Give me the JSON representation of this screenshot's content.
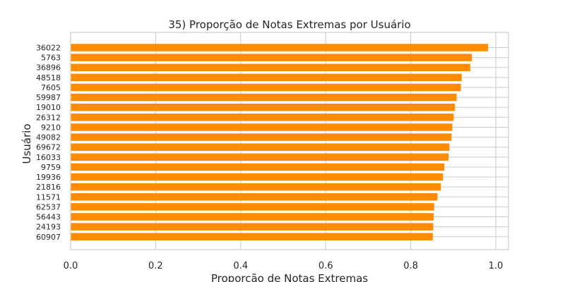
{
  "chart_data": {
    "type": "bar",
    "orientation": "horizontal",
    "title": "35) Proporção de Notas Extremas por Usuário",
    "xlabel": "Proporção de Notas Extremas",
    "ylabel": "Usuário",
    "xlim": [
      0.0,
      1.03
    ],
    "xticks": [
      "0.0",
      "0.2",
      "0.4",
      "0.6",
      "0.8",
      "1.0"
    ],
    "grid": true,
    "bar_color": "#ff8c00",
    "categories": [
      "36022",
      "5763",
      "36896",
      "48518",
      "7605",
      "59987",
      "19010",
      "26312",
      "9210",
      "49082",
      "69672",
      "16033",
      "9759",
      "19936",
      "21816",
      "11571",
      "62537",
      "56443",
      "24193",
      "60907"
    ],
    "values": [
      0.982,
      0.944,
      0.94,
      0.92,
      0.918,
      0.908,
      0.904,
      0.901,
      0.898,
      0.896,
      0.891,
      0.889,
      0.879,
      0.876,
      0.871,
      0.863,
      0.855,
      0.854,
      0.853,
      0.852
    ]
  }
}
